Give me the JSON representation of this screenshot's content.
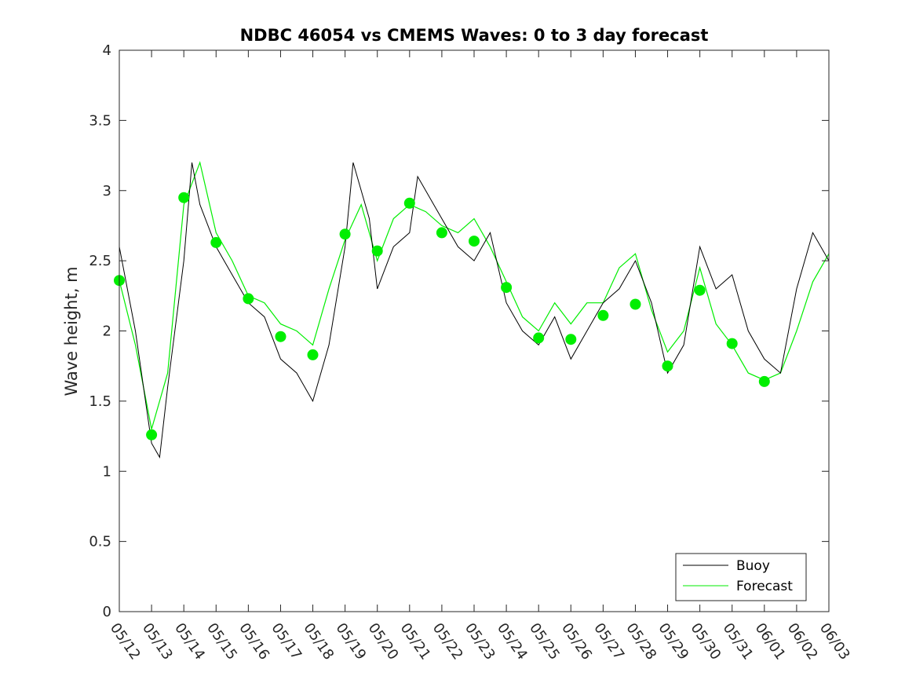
{
  "chart_data": {
    "type": "line",
    "title": "NDBC 46054 vs CMEMS Waves: 0 to 3 day forecast",
    "xlabel": "",
    "ylabel": "Wave height, m",
    "xlim": [
      "05/12",
      "06/03"
    ],
    "ylim": [
      0,
      4
    ],
    "grid": false,
    "legend_position": "bottom-right",
    "x_tick_labels": [
      "05/12",
      "05/13",
      "05/14",
      "05/15",
      "05/16",
      "05/17",
      "05/18",
      "05/19",
      "05/20",
      "05/21",
      "05/22",
      "05/23",
      "05/24",
      "05/25",
      "05/26",
      "05/27",
      "05/28",
      "05/29",
      "05/30",
      "05/31",
      "06/01",
      "06/02",
      "06/03"
    ],
    "y_ticks": [
      0,
      0.5,
      1,
      1.5,
      2,
      2.5,
      3,
      3.5,
      4
    ],
    "y_tick_labels": [
      "0",
      "0.5",
      "1",
      "1.5",
      "2",
      "2.5",
      "3",
      "3.5",
      "4"
    ],
    "colors": {
      "buoy": "#000000",
      "forecast": "#00ee00",
      "markers": "#00ee00"
    },
    "series": [
      {
        "name": "Buoy",
        "x": [
          "05/12",
          "05/12 12:00",
          "05/13",
          "05/13 06:00",
          "05/13 12:00",
          "05/14",
          "05/14 06:00",
          "05/14 12:00",
          "05/15",
          "05/15 12:00",
          "05/16",
          "05/16 12:00",
          "05/17",
          "05/17 12:00",
          "05/18",
          "05/18 12:00",
          "05/19",
          "05/19 06:00",
          "05/19 18:00",
          "05/20",
          "05/20 12:00",
          "05/21",
          "05/21 06:00",
          "05/21 18:00",
          "05/22",
          "05/22 12:00",
          "05/23",
          "05/23 12:00",
          "05/24",
          "05/24 12:00",
          "05/25",
          "05/25 12:00",
          "05/26",
          "05/26 12:00",
          "05/27",
          "05/27 12:00",
          "05/28",
          "05/28 12:00",
          "05/29",
          "05/29 12:00",
          "05/30",
          "05/30 12:00",
          "05/31",
          "05/31 12:00",
          "06/01",
          "06/01 12:00",
          "06/02",
          "06/02 12:00",
          "06/03"
        ],
        "values": [
          2.6,
          2.0,
          1.2,
          1.1,
          1.6,
          2.5,
          3.2,
          2.9,
          2.6,
          2.4,
          2.2,
          2.1,
          1.8,
          1.7,
          1.5,
          1.9,
          2.6,
          3.2,
          2.8,
          2.3,
          2.6,
          2.7,
          3.1,
          2.9,
          2.8,
          2.6,
          2.5,
          2.7,
          2.2,
          2.0,
          1.9,
          2.1,
          1.8,
          2.0,
          2.2,
          2.3,
          2.5,
          2.2,
          1.7,
          1.9,
          2.6,
          2.3,
          2.4,
          2.0,
          1.8,
          1.7,
          2.3,
          2.7,
          2.5
        ]
      },
      {
        "name": "Forecast",
        "x": [
          "05/12",
          "05/12 12:00",
          "05/13",
          "05/13 12:00",
          "05/14",
          "05/14 12:00",
          "05/15",
          "05/15 12:00",
          "05/16",
          "05/16 12:00",
          "05/17",
          "05/17 12:00",
          "05/18",
          "05/18 12:00",
          "05/19",
          "05/19 12:00",
          "05/20",
          "05/20 12:00",
          "05/21",
          "05/21 12:00",
          "05/22",
          "05/22 12:00",
          "05/23",
          "05/23 12:00",
          "05/24",
          "05/24 12:00",
          "05/25",
          "05/25 12:00",
          "05/26",
          "05/26 12:00",
          "05/27",
          "05/27 12:00",
          "05/28",
          "05/28 12:00",
          "05/29",
          "05/29 12:00",
          "05/30",
          "05/30 12:00",
          "05/31",
          "05/31 12:00",
          "06/01",
          "06/01 12:00",
          "06/02",
          "06/02 12:00",
          "06/03"
        ],
        "values": [
          2.36,
          1.9,
          1.3,
          1.7,
          2.9,
          3.2,
          2.7,
          2.5,
          2.25,
          2.2,
          2.05,
          2.0,
          1.9,
          2.3,
          2.65,
          2.9,
          2.5,
          2.8,
          2.9,
          2.85,
          2.75,
          2.7,
          2.8,
          2.6,
          2.35,
          2.1,
          2.0,
          2.2,
          2.05,
          2.2,
          2.2,
          2.45,
          2.55,
          2.15,
          1.85,
          2.0,
          2.45,
          2.05,
          1.9,
          1.7,
          1.65,
          1.7,
          2.0,
          2.35,
          2.55
        ]
      },
      {
        "name": "",
        "x": [
          "05/12",
          "05/13",
          "05/14",
          "05/15",
          "05/16",
          "05/17",
          "05/18",
          "05/19",
          "05/20",
          "05/21",
          "05/22",
          "05/23",
          "05/24",
          "05/25",
          "05/26",
          "05/27",
          "05/28",
          "05/29",
          "05/30",
          "05/31",
          "06/01"
        ],
        "values": [
          2.36,
          1.26,
          2.95,
          2.63,
          2.23,
          1.96,
          1.83,
          2.69,
          2.57,
          2.91,
          2.7,
          2.64,
          2.31,
          1.95,
          1.94,
          2.11,
          2.19,
          1.75,
          2.29,
          1.91,
          1.64
        ]
      }
    ]
  }
}
